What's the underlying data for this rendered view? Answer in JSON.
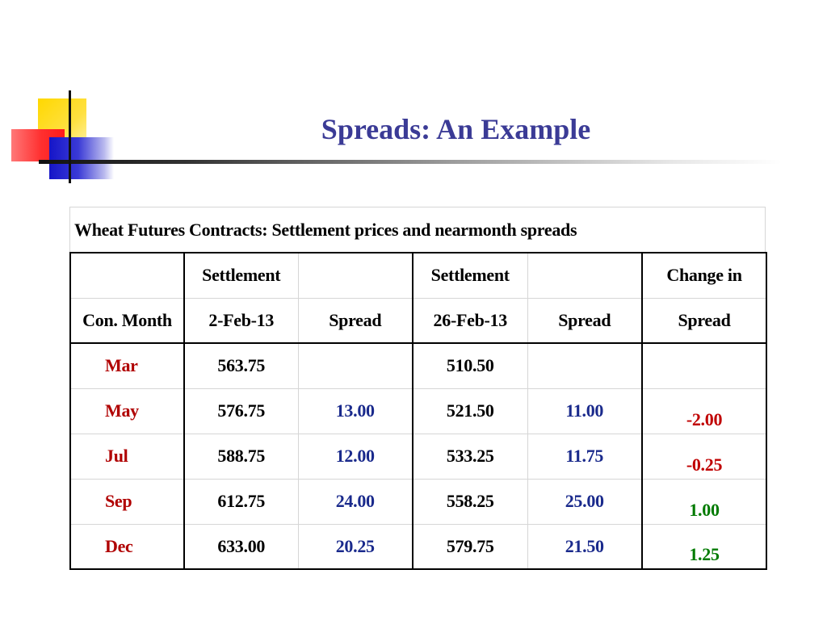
{
  "slide": {
    "title": "Spreads: An Example"
  },
  "table": {
    "caption": "Wheat Futures Contracts: Settlement prices and nearmonth spreads",
    "header_row1": [
      "",
      "Settlement",
      "",
      "Settlement",
      "",
      "Change in"
    ],
    "header_row2": [
      "Con. Month",
      "2-Feb-13",
      "Spread",
      "26-Feb-13",
      "Spread",
      "Spread"
    ],
    "rows": [
      {
        "month": "Mar",
        "settle_feb2": "563.75",
        "spread_feb2": "",
        "settle_feb26": "510.50",
        "spread_feb26": "",
        "change": ""
      },
      {
        "month": "May",
        "settle_feb2": "576.75",
        "spread_feb2": "13.00",
        "settle_feb26": "521.50",
        "spread_feb26": "11.00",
        "change": "-2.00"
      },
      {
        "month": "Jul",
        "settle_feb2": "588.75",
        "spread_feb2": "12.00",
        "settle_feb26": "533.25",
        "spread_feb26": "11.75",
        "change": "-0.25"
      },
      {
        "month": "Sep",
        "settle_feb2": "612.75",
        "spread_feb2": "24.00",
        "settle_feb26": "558.25",
        "spread_feb26": "25.00",
        "change": "1.00"
      },
      {
        "month": "Dec",
        "settle_feb2": "633.00",
        "spread_feb2": "20.25",
        "settle_feb26": "579.75",
        "spread_feb26": "21.50",
        "change": "1.25"
      }
    ]
  },
  "colors": {
    "title": "#3b3b96",
    "month_label": "#b00000",
    "spread_value": "#1a2a8c",
    "negative_change": "#c00000",
    "positive_change": "#007a00"
  }
}
